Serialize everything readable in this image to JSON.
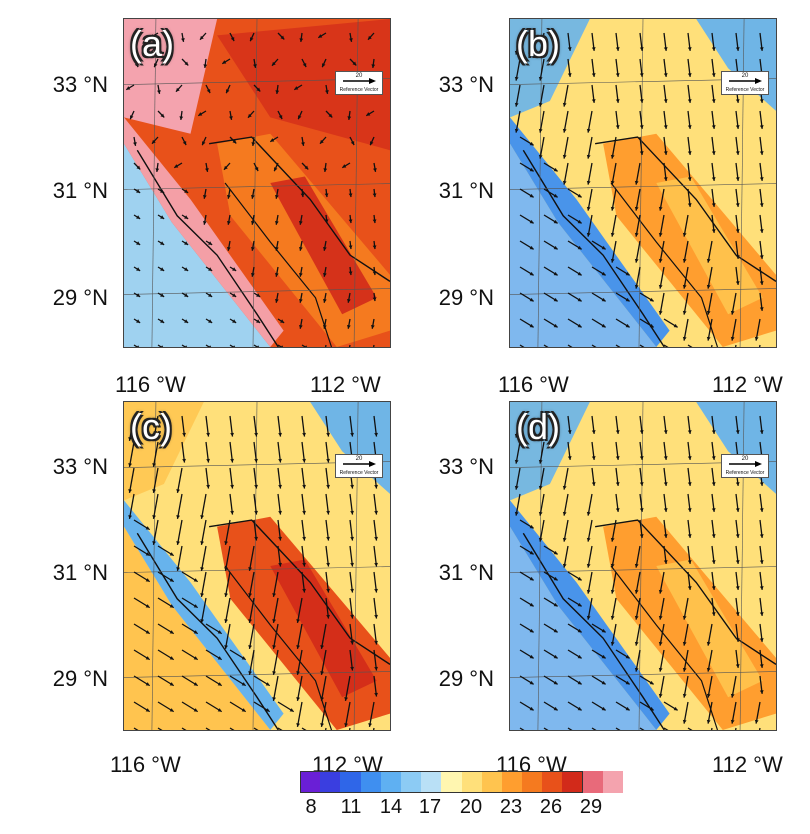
{
  "panels": [
    {
      "letter": "(a)",
      "regime": "warm",
      "ref_value": "20",
      "ref_label": "Reference Vector"
    },
    {
      "letter": "(b)",
      "regime": "moderate",
      "ref_value": "20",
      "ref_label": "Reference Vector"
    },
    {
      "letter": "(c)",
      "regime": "strong",
      "ref_value": "20",
      "ref_label": "Reference Vector"
    },
    {
      "letter": "(d)",
      "regime": "moderate",
      "ref_value": "20",
      "ref_label": "Reference Vector"
    }
  ],
  "lat_labels": [
    "33 °N",
    "31 °N",
    "29 °N"
  ],
  "lon_labels": [
    "116 °W",
    "112 °W"
  ],
  "colorbar": {
    "ticks": [
      "8",
      "11",
      "14",
      "17",
      "20",
      "23",
      "26",
      "29"
    ],
    "colors": [
      "#6a1fd6",
      "#3a3ee0",
      "#2f66e8",
      "#3f8ff0",
      "#5fb0f2",
      "#8ccbf4",
      "#b9e0f6",
      "#fff6b0",
      "#ffe07a",
      "#ffc44f",
      "#ff9e2f",
      "#f57a1f",
      "#e8511a",
      "#d22a1a",
      "#e86a7a",
      "#f4a3ae"
    ]
  }
}
